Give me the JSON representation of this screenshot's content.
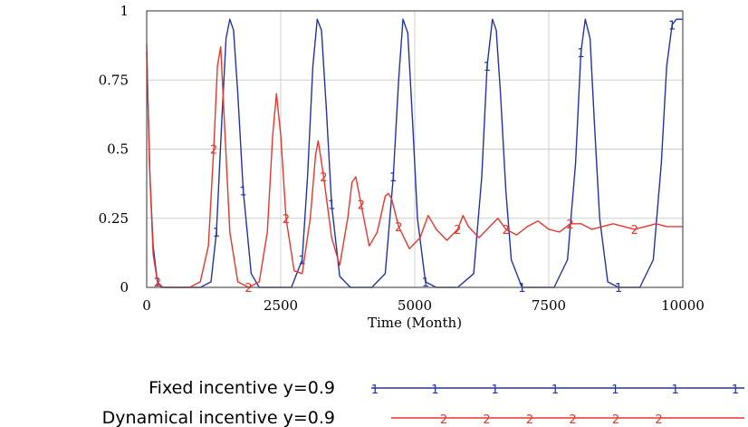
{
  "chart_data": {
    "type": "line",
    "title": "",
    "xlabel": "Time (Month)",
    "ylabel": "",
    "xlim": [
      0,
      10000
    ],
    "ylim": [
      0,
      1
    ],
    "x_ticks": [
      0,
      2500,
      5000,
      7500,
      10000
    ],
    "x_tick_labels": [
      "0",
      "2500",
      "5000",
      "7500",
      "10000"
    ],
    "y_ticks": [
      0,
      0.25,
      0.5,
      0.75,
      1
    ],
    "y_tick_labels": [
      "0",
      "0.25",
      "0.5",
      "0.75",
      "1"
    ],
    "grid": true,
    "legend_position": "bottom",
    "series": [
      {
        "name": "Fixed incentive y=0.9",
        "marker": "1",
        "color": "#2233aa",
        "x": [
          0,
          60,
          120,
          200,
          280,
          400,
          700,
          1000,
          1200,
          1300,
          1400,
          1480,
          1550,
          1620,
          1700,
          1800,
          1950,
          2100,
          2300,
          2500,
          2700,
          2900,
          3000,
          3100,
          3180,
          3260,
          3350,
          3450,
          3600,
          3800,
          4000,
          4200,
          4450,
          4600,
          4700,
          4780,
          4870,
          4960,
          5050,
          5200,
          5400,
          5600,
          5800,
          6100,
          6250,
          6350,
          6450,
          6520,
          6600,
          6700,
          6800,
          7000,
          7200,
          7400,
          7600,
          7850,
          8000,
          8100,
          8180,
          8270,
          8350,
          8450,
          8600,
          8800,
          9000,
          9200,
          9450,
          9600,
          9700,
          9800,
          9880,
          9950,
          10000
        ],
        "y": [
          0.85,
          0.4,
          0.15,
          0.02,
          0.0,
          0.0,
          0.0,
          0.0,
          0.02,
          0.2,
          0.6,
          0.9,
          0.97,
          0.93,
          0.7,
          0.35,
          0.05,
          0.0,
          0.0,
          0.0,
          0.0,
          0.1,
          0.4,
          0.8,
          0.97,
          0.93,
          0.65,
          0.3,
          0.04,
          0.0,
          0.0,
          0.0,
          0.05,
          0.4,
          0.75,
          0.97,
          0.92,
          0.6,
          0.25,
          0.02,
          0.0,
          0.0,
          0.0,
          0.05,
          0.4,
          0.8,
          0.97,
          0.93,
          0.7,
          0.35,
          0.1,
          0.0,
          0.0,
          0.0,
          0.0,
          0.1,
          0.45,
          0.85,
          0.97,
          0.9,
          0.6,
          0.25,
          0.02,
          0.0,
          0.0,
          0.0,
          0.1,
          0.45,
          0.8,
          0.95,
          0.97,
          0.97,
          0.97
        ]
      },
      {
        "name": "Dynamical incentive y=0.9",
        "marker": "2",
        "color": "#e8362b",
        "x": [
          0,
          50,
          120,
          200,
          300,
          500,
          800,
          1000,
          1150,
          1250,
          1320,
          1380,
          1450,
          1550,
          1700,
          1900,
          2100,
          2250,
          2350,
          2420,
          2500,
          2600,
          2750,
          2900,
          3050,
          3150,
          3200,
          3300,
          3450,
          3600,
          3750,
          3830,
          3900,
          4000,
          4150,
          4300,
          4450,
          4510,
          4570,
          4700,
          4900,
          5100,
          5250,
          5400,
          5600,
          5800,
          5900,
          6000,
          6200,
          6400,
          6550,
          6700,
          6900,
          7100,
          7300,
          7500,
          7700,
          7900,
          8100,
          8300,
          8500,
          8700,
          8900,
          9100,
          9300,
          9500,
          9700,
          10000
        ],
        "y": [
          0.88,
          0.45,
          0.12,
          0.02,
          0.0,
          0.0,
          0.0,
          0.02,
          0.15,
          0.5,
          0.8,
          0.87,
          0.6,
          0.2,
          0.02,
          0.0,
          0.02,
          0.2,
          0.55,
          0.7,
          0.55,
          0.25,
          0.06,
          0.05,
          0.25,
          0.48,
          0.53,
          0.4,
          0.18,
          0.08,
          0.25,
          0.38,
          0.4,
          0.3,
          0.15,
          0.2,
          0.33,
          0.34,
          0.32,
          0.22,
          0.14,
          0.18,
          0.26,
          0.21,
          0.17,
          0.21,
          0.26,
          0.22,
          0.18,
          0.22,
          0.25,
          0.21,
          0.19,
          0.22,
          0.24,
          0.21,
          0.2,
          0.23,
          0.23,
          0.21,
          0.22,
          0.23,
          0.22,
          0.21,
          0.22,
          0.23,
          0.22,
          0.22
        ]
      }
    ]
  }
}
